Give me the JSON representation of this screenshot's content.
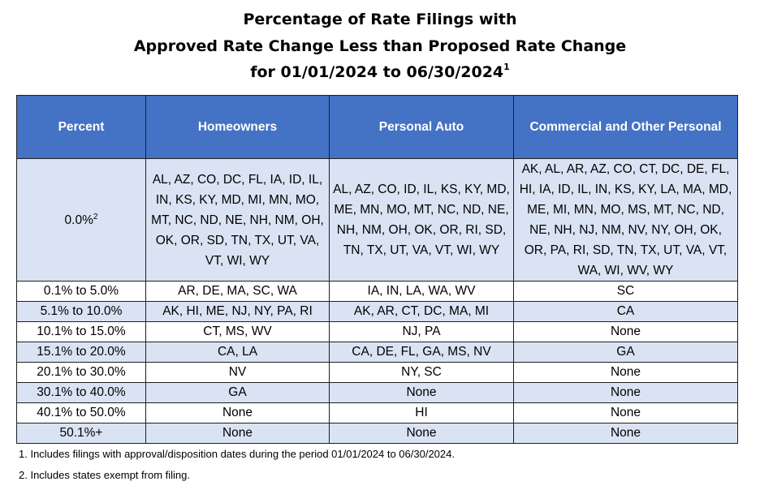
{
  "title": {
    "line1": "Percentage of Rate Filings with",
    "line2": "Approved Rate Change Less than Proposed Rate Change",
    "line3": "for 01/01/2024 to 06/30/2024",
    "line3_sup": "1"
  },
  "table": {
    "headers": [
      "Percent",
      "Homeowners",
      "Personal Auto",
      "Commercial and Other Personal"
    ],
    "rows": [
      {
        "percent": "0.0%",
        "percent_sup": "2",
        "homeowners": "AL, AZ, CO, DC, FL, IA, ID, IL, IN, KS, KY, MD, MI, MN, MO, MT, NC, ND, NE, NH, NM, OH, OK, OR, SD, TN, TX, UT, VA, VT, WI, WY",
        "personal_auto": "AL, AZ, CO, ID, IL, KS, KY, MD, ME, MN, MO, MT, NC, ND, NE, NH, NM, OH, OK, OR, RI, SD, TN, TX, UT, VA, VT, WI, WY",
        "commercial": "AK, AL, AR, AZ, CO, CT, DC, DE, FL, HI, IA, ID, IL, IN, KS, KY, LA, MA, MD, ME, MI, MN, MO, MS, MT, NC, ND, NE, NH, NJ, NM, NV, NY, OH, OK, OR, PA, RI, SD, TN, TX, UT, VA, VT, WA, WI, WV, WY"
      },
      {
        "percent": "0.1% to 5.0%",
        "homeowners": "AR, DE, MA, SC, WA",
        "personal_auto": "IA, IN, LA, WA, WV",
        "commercial": "SC"
      },
      {
        "percent": "5.1% to 10.0%",
        "homeowners": "AK, HI, ME, NJ, NY, PA, RI",
        "personal_auto": "AK, AR, CT, DC, MA, MI",
        "commercial": "CA"
      },
      {
        "percent": "10.1% to 15.0%",
        "homeowners": "CT, MS, WV",
        "personal_auto": "NJ, PA",
        "commercial": "None"
      },
      {
        "percent": "15.1% to 20.0%",
        "homeowners": "CA, LA",
        "personal_auto": "CA, DE, FL, GA, MS, NV",
        "commercial": "GA"
      },
      {
        "percent": "20.1% to 30.0%",
        "homeowners": "NV",
        "personal_auto": "NY, SC",
        "commercial": "None"
      },
      {
        "percent": "30.1% to 40.0%",
        "homeowners": "GA",
        "personal_auto": "None",
        "commercial": "None"
      },
      {
        "percent": "40.1% to 50.0%",
        "homeowners": "None",
        "personal_auto": "HI",
        "commercial": "None"
      },
      {
        "percent": "50.1%+",
        "homeowners": "None",
        "personal_auto": "None",
        "commercial": "None"
      }
    ]
  },
  "footnotes": [
    "1. Includes filings with approval/disposition dates during the period 01/01/2024 to 06/30/2024.",
    "2. Includes states exempt from filing."
  ],
  "colors": {
    "header_bg": "#4472c4",
    "header_text": "#ffffff",
    "row_shade": "#dae3f3",
    "row_plain": "#ffffff",
    "border": "#1f1f1f"
  }
}
